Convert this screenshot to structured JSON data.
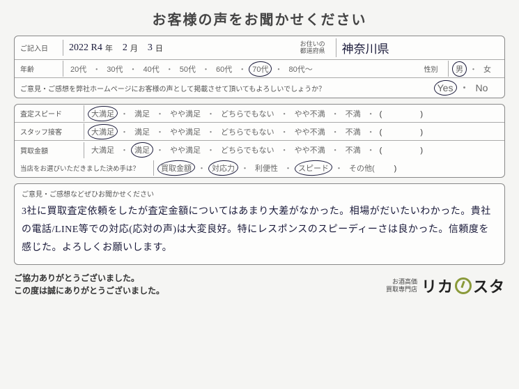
{
  "title": "お客様の声をお聞かせください",
  "section1": {
    "date_label": "ご記入日",
    "date_year": "2022 R4",
    "year_unit": "年",
    "date_month": "2",
    "month_unit": "月",
    "date_day": "3",
    "day_unit": "日",
    "pref_label1": "お住いの",
    "pref_label2": "都道府県",
    "pref_value": "神奈川県",
    "age_label": "年齢",
    "age_options": [
      "20代",
      "30代",
      "40代",
      "50代",
      "60代",
      "70代",
      "80代～"
    ],
    "age_selected": "70代",
    "gender_label": "性別",
    "gender_options": [
      "男",
      "女"
    ],
    "gender_selected": "男",
    "consent_q": "ご意見・ご感想を弊社ホームページにお客様の声として掲載させて頂いてもよろしいでしょうか？",
    "yes": "Yes",
    "no": "No",
    "consent_selected": "Yes"
  },
  "section2": {
    "rows": [
      {
        "label": "査定スピード",
        "sel": "大満足"
      },
      {
        "label": "スタッフ接客",
        "sel": "大満足"
      },
      {
        "label": "買取金額",
        "sel": "満足"
      }
    ],
    "scale": [
      "大満足",
      "満足",
      "やや満足",
      "どちらでもない",
      "やや不満",
      "不満"
    ],
    "paren": "(　　　　　)",
    "reason_label": "当店をお選びいただきました決め手は？",
    "reason_options": [
      "買取金額",
      "対応力",
      "利便性",
      "スピード",
      "その他("
    ],
    "reason_selected": [
      "買取金額",
      "対応力",
      "スピード"
    ],
    "reason_close": ")"
  },
  "comment": {
    "label": "ご意見・ご感想などぜひお聞かせください",
    "text": "3社に買取査定依頼をしたが査定金額についてはあまり大差がなかった。相場がだいたいわかった。貴社の電話/LINE等での対応(応対の声)は大変良好。特にレスポンスのスピーディーさは良かった。信頼度を感じた。よろしくお願いします。"
  },
  "footer": {
    "thanks1": "ご協力ありがとうございました。",
    "thanks2": "この度は誠にありがとうございました。",
    "logo_sub1": "お酒高価",
    "logo_sub2": "買取専門店",
    "logo_pre": "リカ",
    "logo_post": "スタ"
  },
  "colors": {
    "hand": "#1a1a3a",
    "border": "#888888",
    "accent": "#8a9a3a",
    "bg": "#f5f5f3"
  }
}
